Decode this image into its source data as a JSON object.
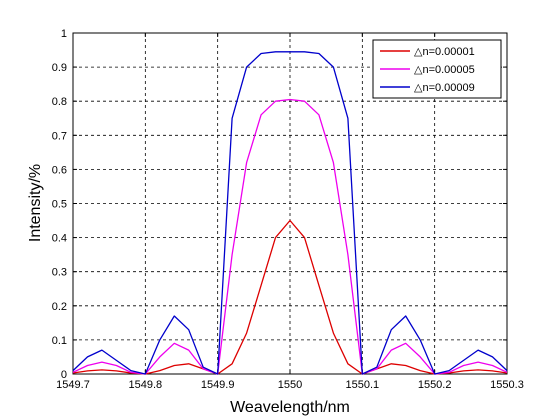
{
  "chart_data": {
    "type": "line",
    "title": "",
    "xlabel": "Weavelength/nm",
    "ylabel": "Intensity/%",
    "xlim": [
      1549.7,
      1550.3
    ],
    "ylim": [
      0,
      1
    ],
    "xticks": [
      1549.7,
      1549.8,
      1549.9,
      1550,
      1550.1,
      1550.2,
      1550.3
    ],
    "xtick_labels": [
      "1549.7",
      "1549.8",
      "1549.9",
      "1550",
      "1550.1",
      "1550.2",
      "1550.3"
    ],
    "yticks": [
      0,
      0.1,
      0.2,
      0.3,
      0.4,
      0.5,
      0.6,
      0.7,
      0.8,
      0.9,
      1
    ],
    "ytick_labels": [
      "0",
      "0.1",
      "0.2",
      "0.3",
      "0.4",
      "0.5",
      "0.6",
      "0.7",
      "0.8",
      "0.9",
      "1"
    ],
    "grid": true,
    "legend_position": "top-right",
    "series": [
      {
        "name": "△n=0.00001",
        "color": "#dd0000",
        "x": [
          1549.7,
          1549.72,
          1549.74,
          1549.76,
          1549.78,
          1549.8,
          1549.82,
          1549.84,
          1549.86,
          1549.88,
          1549.9,
          1549.92,
          1549.94,
          1549.96,
          1549.98,
          1550.0,
          1550.02,
          1550.04,
          1550.06,
          1550.08,
          1550.1,
          1550.12,
          1550.14,
          1550.16,
          1550.18,
          1550.2,
          1550.22,
          1550.24,
          1550.26,
          1550.28,
          1550.3
        ],
        "y": [
          0.003,
          0.009,
          0.012,
          0.009,
          0.003,
          0.0,
          0.01,
          0.025,
          0.03,
          0.015,
          0.0,
          0.03,
          0.12,
          0.26,
          0.4,
          0.45,
          0.4,
          0.26,
          0.12,
          0.03,
          0.0,
          0.015,
          0.03,
          0.025,
          0.01,
          0.0,
          0.003,
          0.009,
          0.012,
          0.009,
          0.003
        ]
      },
      {
        "name": "△n=0.00005",
        "color": "#ee00ee",
        "x": [
          1549.7,
          1549.72,
          1549.74,
          1549.76,
          1549.78,
          1549.8,
          1549.82,
          1549.84,
          1549.86,
          1549.88,
          1549.9,
          1549.92,
          1549.94,
          1549.96,
          1549.98,
          1550.0,
          1550.02,
          1550.04,
          1550.06,
          1550.08,
          1550.1,
          1550.12,
          1550.14,
          1550.16,
          1550.18,
          1550.2,
          1550.22,
          1550.24,
          1550.26,
          1550.28,
          1550.3
        ],
        "y": [
          0.005,
          0.025,
          0.035,
          0.025,
          0.005,
          0.0,
          0.05,
          0.09,
          0.07,
          0.015,
          0.0,
          0.35,
          0.62,
          0.76,
          0.8,
          0.805,
          0.8,
          0.76,
          0.62,
          0.35,
          0.0,
          0.015,
          0.07,
          0.09,
          0.05,
          0.0,
          0.005,
          0.025,
          0.035,
          0.025,
          0.005
        ]
      },
      {
        "name": "△n=0.00009",
        "color": "#0000cc",
        "x": [
          1549.7,
          1549.72,
          1549.74,
          1549.76,
          1549.78,
          1549.8,
          1549.82,
          1549.84,
          1549.86,
          1549.88,
          1549.9,
          1549.92,
          1549.94,
          1549.96,
          1549.98,
          1550.0,
          1550.02,
          1550.04,
          1550.06,
          1550.08,
          1550.1,
          1550.12,
          1550.14,
          1550.16,
          1550.18,
          1550.2,
          1550.22,
          1550.24,
          1550.26,
          1550.28,
          1550.3
        ],
        "y": [
          0.01,
          0.05,
          0.07,
          0.04,
          0.01,
          0.0,
          0.1,
          0.17,
          0.13,
          0.02,
          0.0,
          0.75,
          0.9,
          0.94,
          0.945,
          0.945,
          0.945,
          0.94,
          0.9,
          0.75,
          0.0,
          0.02,
          0.13,
          0.17,
          0.1,
          0.0,
          0.01,
          0.04,
          0.07,
          0.05,
          0.01
        ]
      }
    ]
  }
}
